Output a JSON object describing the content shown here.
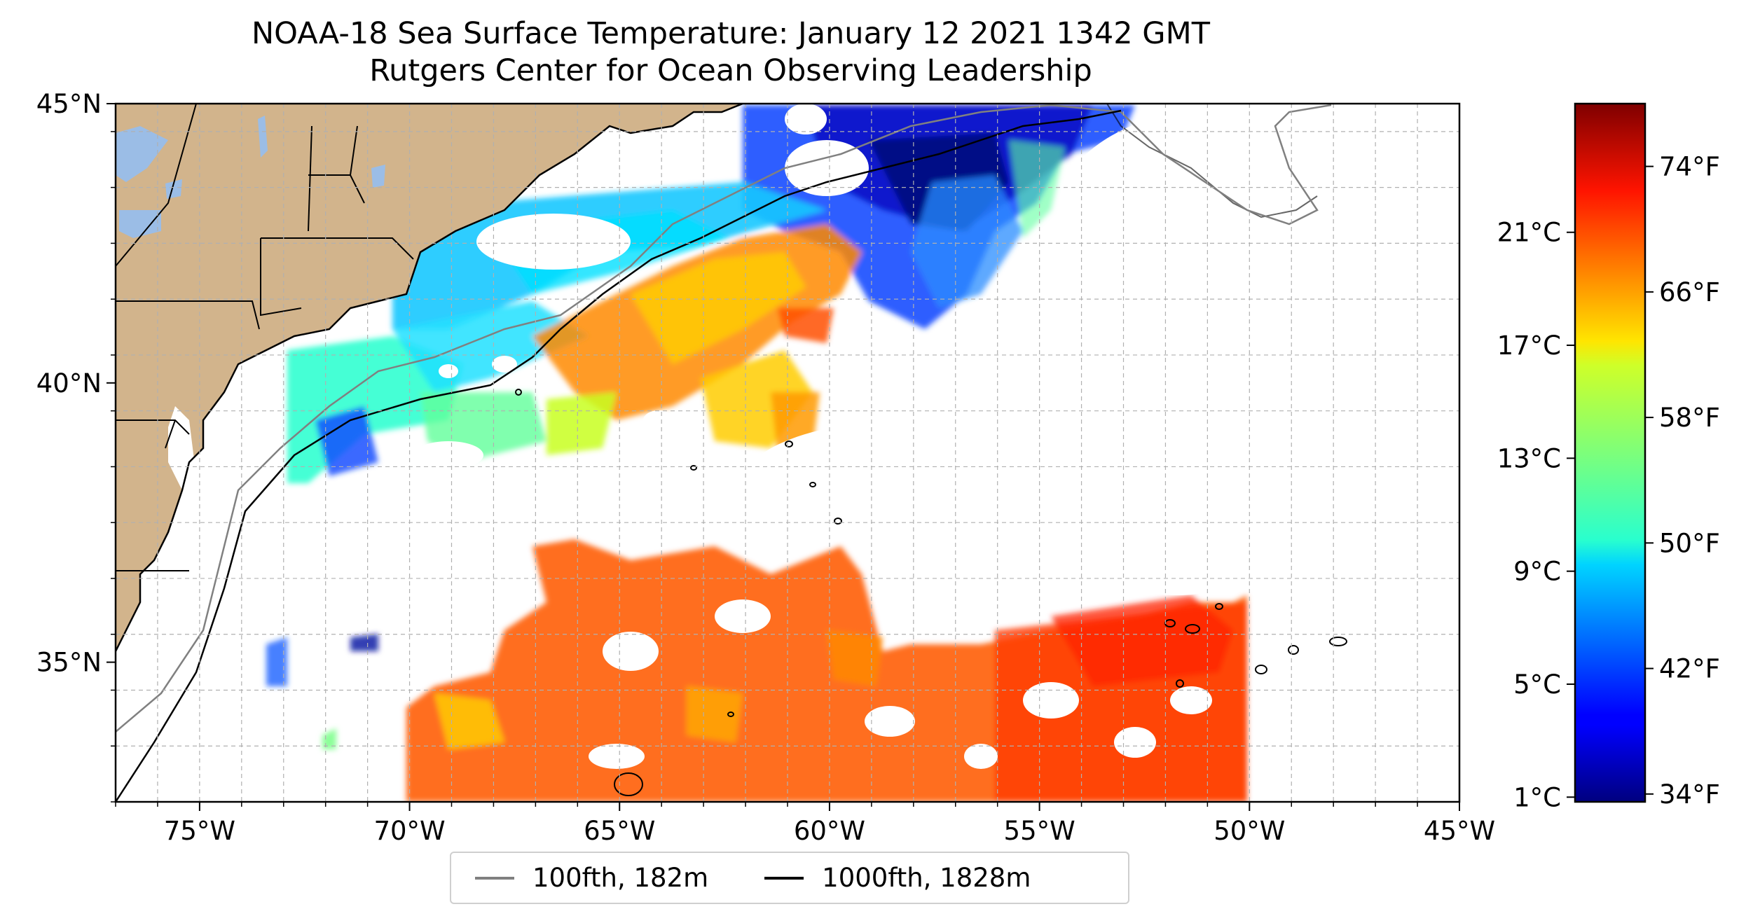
{
  "title": {
    "line1": "NOAA-18 Sea Surface Temperature: January 12 2021 1342 GMT",
    "line2": "Rutgers Center for Ocean Observing Leadership"
  },
  "map": {
    "lon_range": [
      -77,
      -45
    ],
    "lat_range": [
      32.5,
      45
    ],
    "lon_ticks": [
      {
        "value": -75,
        "label": "75°W"
      },
      {
        "value": -70,
        "label": "70°W"
      },
      {
        "value": -65,
        "label": "65°W"
      },
      {
        "value": -60,
        "label": "60°W"
      },
      {
        "value": -55,
        "label": "55°W"
      },
      {
        "value": -50,
        "label": "50°W"
      },
      {
        "value": -45,
        "label": "45°W"
      }
    ],
    "lat_ticks": [
      {
        "value": 45,
        "label": "45°N"
      },
      {
        "value": 40,
        "label": "40°N"
      },
      {
        "value": 35,
        "label": "35°N"
      }
    ],
    "gridlines": "dashed",
    "colors": {
      "land": "#d2b48c",
      "lakes": "#9bbde6",
      "isobath_100fth": "#808080",
      "isobath_1000fth": "#000000"
    }
  },
  "colorbar": {
    "colormap": "jet",
    "celsius_ticks": [
      {
        "value": 1,
        "label": "1°C"
      },
      {
        "value": 5,
        "label": "5°C"
      },
      {
        "value": 9,
        "label": "9°C"
      },
      {
        "value": 13,
        "label": "13°C"
      },
      {
        "value": 17,
        "label": "17°C"
      },
      {
        "value": 21,
        "label": "21°C"
      }
    ],
    "fahrenheit_ticks": [
      {
        "value": 34,
        "label": "34°F"
      },
      {
        "value": 42,
        "label": "42°F"
      },
      {
        "value": 50,
        "label": "50°F"
      },
      {
        "value": 58,
        "label": "58°F"
      },
      {
        "value": 66,
        "label": "66°F"
      },
      {
        "value": 74,
        "label": "74°F"
      }
    ],
    "range_f": [
      33.5,
      78
    ]
  },
  "legend": {
    "items": [
      {
        "label": "100fth, 182m",
        "color": "#808080"
      },
      {
        "label": "1000fth, 1828m",
        "color": "#000000"
      }
    ]
  }
}
